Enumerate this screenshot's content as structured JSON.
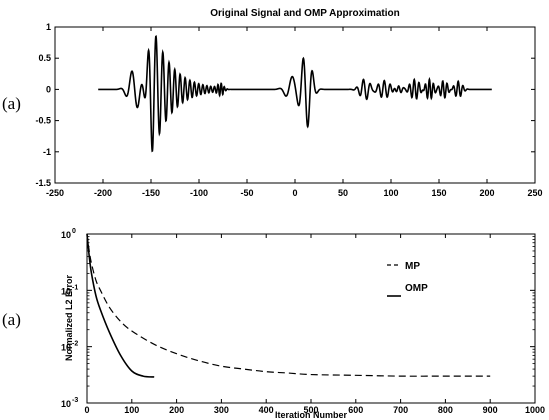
{
  "figure": {
    "label_top": "(a)",
    "label_bottom": "(a)"
  },
  "chart_data": [
    {
      "type": "line",
      "title": "Original Signal and OMP  Approximation",
      "xlabel": "",
      "ylabel": "",
      "xlim": [
        -250,
        250
      ],
      "ylim": [
        -1.5,
        1
      ],
      "xticks": [
        -250,
        -200,
        -150,
        -100,
        -50,
        0,
        50,
        100,
        150,
        200,
        250
      ],
      "yticks": [
        -1.5,
        -1,
        -0.5,
        0,
        0.5,
        1
      ],
      "grid": false,
      "series": [
        {
          "components": [
            {
              "kind": "wavelet",
              "center": -167,
              "amp": 0.33,
              "width": 6,
              "freq": 0.08,
              "phase": 1.57
            },
            {
              "kind": "chirp",
              "start": -165,
              "end": -75,
              "amp": 1.0,
              "f0": 0.09,
              "f1": 0.28,
              "peak": -148,
              "rise": 7,
              "decay": 20
            },
            {
              "kind": "wavelet",
              "center": -77,
              "amp": 0.08,
              "width": 3,
              "freq": 0.3,
              "phase": 0
            },
            {
              "kind": "wavelet",
              "center": -3,
              "amp": 0.2,
              "width": 6,
              "freq": 0.07,
              "phase": 0
            },
            {
              "kind": "wavelet",
              "center": 12,
              "amp": 0.62,
              "width": 5,
              "freq": 0.1,
              "phase": 2.3
            },
            {
              "kind": "wavelet",
              "center": 73,
              "amp": 0.17,
              "width": 5,
              "freq": 0.14,
              "phase": 1.57
            },
            {
              "kind": "wavelet",
              "center": 93,
              "amp": 0.14,
              "width": 6,
              "freq": 0.16,
              "phase": 0
            },
            {
              "kind": "wavelet",
              "center": 108,
              "amp": 0.06,
              "width": 4,
              "freq": 0.2,
              "phase": 0
            },
            {
              "kind": "wavelet",
              "center": 125,
              "amp": 0.16,
              "width": 5,
              "freq": 0.2,
              "phase": 1.0
            },
            {
              "kind": "wavelet",
              "center": 140,
              "amp": 0.16,
              "width": 4,
              "freq": 0.24,
              "phase": 0
            },
            {
              "kind": "wavelet",
              "center": 155,
              "amp": 0.14,
              "width": 4,
              "freq": 0.22,
              "phase": 1.57
            },
            {
              "kind": "wavelet",
              "center": 170,
              "amp": 0.13,
              "width": 4,
              "freq": 0.2,
              "phase": 0
            }
          ],
          "x_range": [
            -205,
            205
          ]
        }
      ]
    },
    {
      "type": "line",
      "title": "",
      "xlabel": "Iteration Number",
      "ylabel": "Normalized L2 Error",
      "xlim": [
        0,
        1000
      ],
      "ylim_log10": [
        -3,
        0
      ],
      "yscale": "log",
      "xticks": [
        0,
        100,
        200,
        300,
        400,
        500,
        600,
        700,
        800,
        900,
        1000
      ],
      "yticks": [
        "10^0",
        "10^-1",
        "10^-2",
        "10^-3"
      ],
      "grid": false,
      "legend_position": "top-right",
      "series": [
        {
          "name": "MP",
          "style": "dashed",
          "x": [
            0,
            5,
            10,
            20,
            30,
            50,
            75,
            100,
            150,
            200,
            250,
            300,
            350,
            400,
            450,
            500,
            600,
            700,
            800,
            900
          ],
          "y": [
            1.0,
            0.5,
            0.3,
            0.15,
            0.1,
            0.05,
            0.028,
            0.019,
            0.011,
            0.0075,
            0.0056,
            0.0045,
            0.004,
            0.0036,
            0.0034,
            0.0032,
            0.0031,
            0.003,
            0.003,
            0.003
          ]
        },
        {
          "name": "OMP",
          "style": "solid",
          "x": [
            0,
            5,
            10,
            20,
            30,
            50,
            75,
            100,
            125,
            150
          ],
          "y": [
            1.0,
            0.4,
            0.2,
            0.08,
            0.045,
            0.018,
            0.007,
            0.0037,
            0.003,
            0.0029
          ]
        }
      ]
    }
  ]
}
